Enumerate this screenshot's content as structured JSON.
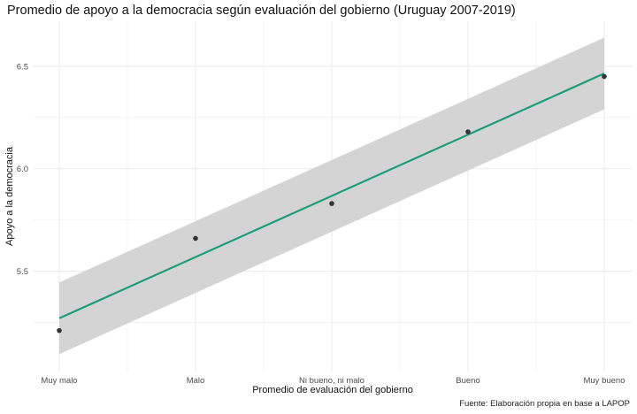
{
  "chart_data": {
    "type": "scatter",
    "title": "Promedio de apoyo a la democracia según evaluación del gobierno (Uruguay 2007-2019)",
    "xlabel": "Promedio de evaluación del gobierno",
    "ylabel": "Apoyo a la democracia",
    "caption": "Fuente: Elaboración propia en base a LAPOP",
    "categories": [
      "Muy malo",
      "Malo",
      "Ni bueno, ni malo",
      "Bueno",
      "Muy bueno"
    ],
    "points": [
      5.21,
      5.66,
      5.83,
      6.18,
      6.45
    ],
    "fit": {
      "method": "linear regression with confidence band",
      "line_start": 5.27,
      "line_end": 6.465,
      "band_lower_start": 5.095,
      "band_upper_start": 5.445,
      "band_lower_end": 6.29,
      "band_upper_end": 6.64
    },
    "yticks": [
      5.5,
      6.0,
      6.5
    ],
    "ylim": [
      5.01,
      6.72
    ],
    "grid": true,
    "colors": {
      "line": "#1b9e77",
      "band": "#d4d4d4",
      "point": "#333333",
      "grid": "#ebebeb"
    }
  }
}
